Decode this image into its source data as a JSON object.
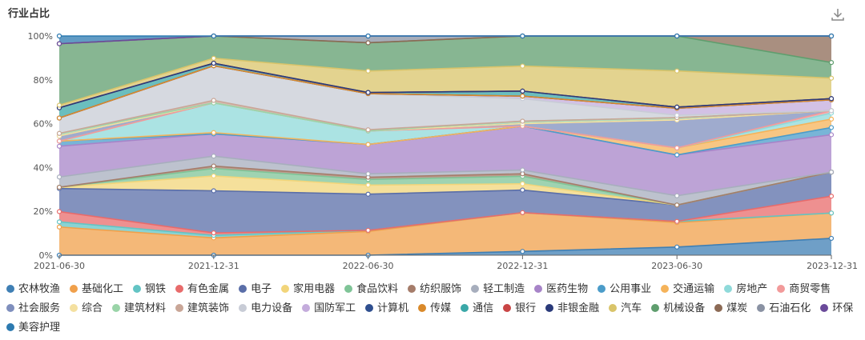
{
  "header": {
    "title": "行业占比",
    "download_icon": "download-icon"
  },
  "chart_data": {
    "type": "area",
    "stacked": true,
    "normalized_percent": true,
    "x": [
      "2021-06-30",
      "2021-12-31",
      "2022-06-30",
      "2022-12-31",
      "2023-06-30",
      "2023-12-31"
    ],
    "ylim": [
      0,
      100
    ],
    "yticks": [
      "0%",
      "20%",
      "40%",
      "60%",
      "80%",
      "100%"
    ],
    "grid": false,
    "legend_position": "bottom",
    "series": [
      {
        "name": "农林牧渔",
        "color": "#3f7fb4",
        "values": [
          0,
          0,
          0,
          1.5,
          3.5,
          7
        ]
      },
      {
        "name": "基础化工",
        "color": "#f0a04b",
        "values": [
          11,
          7,
          10.5,
          15.5,
          10.5,
          10.5
        ]
      },
      {
        "name": "钢铁",
        "color": "#63c4c4",
        "values": [
          2,
          1,
          0.5,
          0,
          0.5,
          0
        ]
      },
      {
        "name": "有色金属",
        "color": "#e86b6b",
        "values": [
          4,
          1,
          0,
          0,
          0,
          7
        ]
      },
      {
        "name": "电子",
        "color": "#5a6ea8",
        "values": [
          9,
          17,
          16,
          9,
          7,
          10
        ]
      },
      {
        "name": "家用电器",
        "color": "#f2d57a",
        "values": [
          0.5,
          6,
          4,
          2.5,
          0,
          0
        ]
      },
      {
        "name": "食品饮料",
        "color": "#7fc497",
        "values": [
          0,
          3,
          2.5,
          3,
          0,
          0
        ]
      },
      {
        "name": "纺织服饰",
        "color": "#a57c6a",
        "values": [
          0,
          1,
          1,
          1,
          0,
          0
        ]
      },
      {
        "name": "轻工制造",
        "color": "#a7aebd",
        "values": [
          4,
          4,
          1.5,
          1.5,
          4,
          0
        ]
      },
      {
        "name": "医药生物",
        "color": "#a784c8",
        "values": [
          12,
          9,
          13,
          17.5,
          17.5,
          15.5
        ]
      },
      {
        "name": "公用事业",
        "color": "#4b9cc9",
        "values": [
          2,
          0,
          0,
          0,
          0,
          3
        ]
      },
      {
        "name": "交通运输",
        "color": "#f5b35a",
        "values": [
          0,
          0.5,
          0,
          0,
          3,
          3.5
        ]
      },
      {
        "name": "房地产",
        "color": "#8fdada",
        "values": [
          0,
          12,
          6,
          0,
          0,
          2.5
        ]
      },
      {
        "name": "商贸零售",
        "color": "#f29a9a",
        "values": [
          0,
          0,
          0,
          0,
          0,
          1
        ]
      },
      {
        "name": "社会服务",
        "color": "#7f8fbd",
        "values": [
          2,
          0,
          0,
          1,
          12,
          0
        ]
      },
      {
        "name": "综合",
        "color": "#f4e0a0",
        "values": [
          0,
          0,
          0,
          0,
          0,
          0
        ]
      },
      {
        "name": "建筑材料",
        "color": "#9ad4a8",
        "values": [
          1,
          0,
          0,
          1,
          1,
          0
        ]
      },
      {
        "name": "建筑装饰",
        "color": "#c9a697",
        "values": [
          0,
          1,
          0.5,
          0,
          0,
          0
        ]
      },
      {
        "name": "电力设备",
        "color": "#c8ccd6",
        "values": [
          6,
          14,
          16,
          9,
          1,
          0
        ]
      },
      {
        "name": "国防军工",
        "color": "#c4acdc",
        "values": [
          0,
          0,
          0,
          1,
          3,
          4.5
        ]
      },
      {
        "name": "计算机",
        "color": "#2f4f8f",
        "values": [
          0,
          0,
          0,
          0,
          0,
          0
        ]
      },
      {
        "name": "传媒",
        "color": "#d9892a",
        "values": [
          0,
          0,
          0,
          0,
          0,
          0
        ]
      },
      {
        "name": "通信",
        "color": "#3aa8a8",
        "values": [
          4,
          1,
          0.5,
          2,
          0.5,
          0.5
        ]
      },
      {
        "name": "银行",
        "color": "#c94545",
        "values": [
          0,
          0,
          0,
          0,
          0,
          0
        ]
      },
      {
        "name": "非银金融",
        "color": "#2a3a7a",
        "values": [
          0,
          0,
          0,
          0,
          0,
          0
        ]
      },
      {
        "name": "汽车",
        "color": "#d9c46a",
        "values": [
          1,
          2,
          9.5,
          10,
          15.5,
          8.5
        ]
      },
      {
        "name": "机械设备",
        "color": "#5f9e6e",
        "values": [
          24,
          9,
          12.5,
          12,
          15,
          6.5
        ]
      },
      {
        "name": "煤炭",
        "color": "#8c6a55",
        "values": [
          0,
          0,
          0,
          0,
          0,
          11
        ]
      },
      {
        "name": "石油石化",
        "color": "#8a92a3",
        "values": [
          0,
          0,
          3,
          0,
          0,
          0
        ]
      },
      {
        "name": "环保",
        "color": "#6a4a9a",
        "values": [
          0,
          0,
          0,
          0,
          0,
          0
        ]
      },
      {
        "name": "美容护理",
        "color": "#2c7ab0",
        "values": [
          3,
          0,
          0,
          0,
          0,
          0
        ]
      }
    ]
  }
}
